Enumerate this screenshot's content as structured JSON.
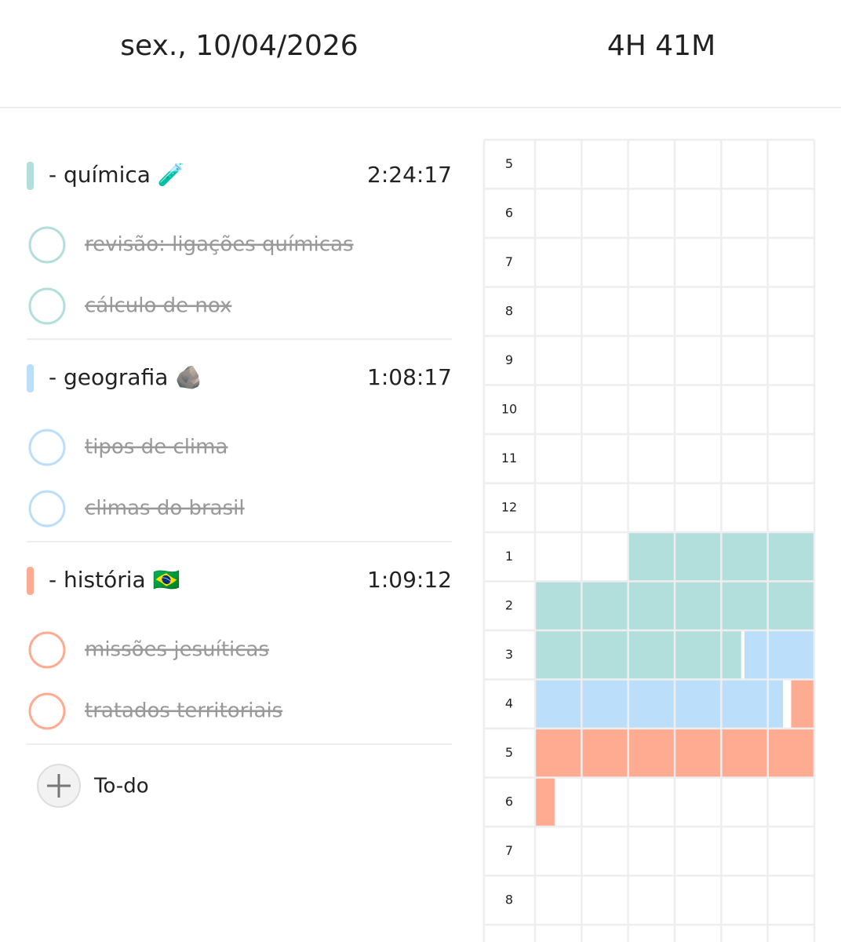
{
  "header": {
    "date": "sex., 10/04/2026",
    "total": "4H 41M"
  },
  "subjects": [
    {
      "name": "- química 🧪",
      "time": "2:24:17",
      "color": "#b2dfdb",
      "tasks": [
        "revisão: ligações químicas",
        "cálculo de nox"
      ]
    },
    {
      "name": "- geografia 🪨",
      "time": "1:08:17",
      "color": "#bbdefb",
      "tasks": [
        "tipos de clima",
        "climas do brasil"
      ]
    },
    {
      "name": "- história 🇧🇷",
      "time": "1:09:12",
      "color": "#ffab91",
      "tasks": [
        "missões jesuíticas",
        "tratados territoriais"
      ]
    }
  ],
  "add_button": "To-do",
  "timeline": {
    "hours": [
      5,
      6,
      7,
      8,
      9,
      10,
      11,
      12,
      {
        "value": 13,
        "label": "1"
      },
      {
        "value": 14,
        "label": "2"
      },
      {
        "value": 15,
        "label": "3"
      },
      {
        "value": 16,
        "label": "4"
      },
      {
        "value": 17,
        "label": "5"
      },
      {
        "value": 18,
        "label": "6"
      },
      {
        "value": 19,
        "label": "7"
      },
      {
        "value": 20,
        "label": "8"
      }
    ],
    "sessions": [
      {
        "subject": 0,
        "start": 13.333,
        "end": 15.738
      },
      {
        "subject": 1,
        "start": 15.75,
        "end": 16.888
      },
      {
        "subject": 2,
        "start": 16.917,
        "end": 18.07
      }
    ]
  }
}
